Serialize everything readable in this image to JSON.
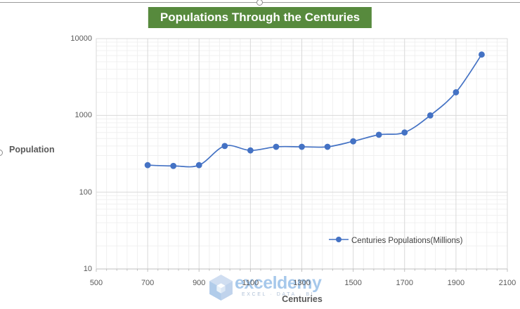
{
  "chart": {
    "title": "Populations Through the Centuries",
    "x_axis_title": "Centuries",
    "y_axis_title": "Population"
  },
  "legend": {
    "label": "Centuries Populations(Millions)"
  },
  "watermark": {
    "brand": "exceldemy",
    "tagline": "EXCEL · DATA · BI"
  },
  "chart_data": {
    "type": "line",
    "title": "Populations Through the Centuries",
    "xlabel": "Centuries",
    "ylabel": "Population",
    "y_scale": "log",
    "xlim": [
      500,
      2100
    ],
    "ylim": [
      10,
      10000
    ],
    "x_ticks": [
      500,
      700,
      900,
      1100,
      1300,
      1500,
      1700,
      1900,
      2100
    ],
    "y_ticks": [
      10,
      100,
      1000,
      10000
    ],
    "x_major_unit": 200,
    "x_minor_unit": 40,
    "grid": "major and minor gridlines on both axes",
    "legend_position": "inside bottom-right",
    "series": [
      {
        "name": "Centuries Populations(Millions)",
        "x": [
          700,
          800,
          900,
          1000,
          1100,
          1200,
          1300,
          1400,
          1500,
          1600,
          1700,
          1800,
          1900,
          2000
        ],
        "values": [
          225,
          220,
          225,
          400,
          350,
          390,
          390,
          390,
          460,
          560,
          600,
          1000,
          2000,
          6200
        ],
        "marker": "circle",
        "smooth": true
      }
    ]
  },
  "colors": {
    "title_bg": "#578A3D",
    "title_text": "#FFFFFF",
    "series": "#4472C4",
    "axis_text": "#595959",
    "grid_major": "#D9D9D9",
    "grid_minor": "#F0F0F0",
    "axis_line": "#BFBFBF",
    "watermark_blue": "#A5C3E6"
  }
}
